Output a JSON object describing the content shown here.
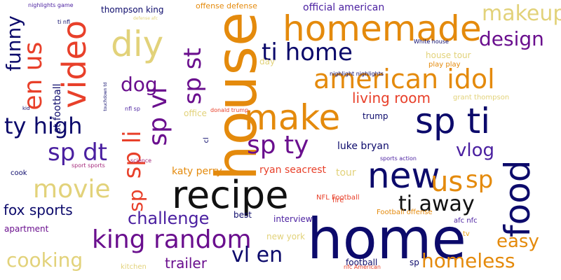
{
  "palette": {
    "navy": "#0c0a6b",
    "purple": "#6a0f8e",
    "violet": "#4a1fa0",
    "magenta": "#a4287a",
    "red": "#e8402a",
    "orange": "#e48a0c",
    "gold": "#e9a21a",
    "khaki": "#e2d27a",
    "black": "#111111"
  },
  "words": [
    {
      "text": "home",
      "color": "navy",
      "weight": 100
    },
    {
      "text": "house",
      "color": "orange",
      "weight": 96
    },
    {
      "text": "recipe",
      "color": "black",
      "weight": 88
    },
    {
      "text": "homemade",
      "color": "orange",
      "weight": 80
    },
    {
      "text": "new",
      "color": "navy",
      "weight": 74
    },
    {
      "text": "diy",
      "color": "khaki",
      "weight": 72
    },
    {
      "text": "sp ti",
      "color": "navy",
      "weight": 70
    },
    {
      "text": "make",
      "color": "orange",
      "weight": 68
    },
    {
      "text": "food",
      "color": "navy",
      "weight": 66
    },
    {
      "text": "video",
      "color": "red",
      "weight": 62
    },
    {
      "text": "american idol",
      "color": "orange",
      "weight": 58
    },
    {
      "text": "us",
      "color": "orange",
      "weight": 58
    },
    {
      "text": "king random",
      "color": "purple",
      "weight": 56
    },
    {
      "text": "en us",
      "color": "red",
      "weight": 54
    },
    {
      "text": "sp vl",
      "color": "purple",
      "weight": 54
    },
    {
      "text": "sp ty",
      "color": "purple",
      "weight": 52
    },
    {
      "text": "movie",
      "color": "khaki",
      "weight": 52
    },
    {
      "text": "sp st",
      "color": "purple",
      "weight": 50
    },
    {
      "text": "sp dt",
      "color": "violet",
      "weight": 50
    },
    {
      "text": "sp li",
      "color": "red",
      "weight": 48
    },
    {
      "text": "sp",
      "color": "orange",
      "weight": 48
    },
    {
      "text": "ti home",
      "color": "navy",
      "weight": 48
    },
    {
      "text": "ti away",
      "color": "black",
      "weight": 46
    },
    {
      "text": "vl en",
      "color": "navy",
      "weight": 46
    },
    {
      "text": "ty high",
      "color": "navy",
      "weight": 44
    },
    {
      "text": "makeup",
      "color": "khaki",
      "weight": 44
    },
    {
      "text": "homeless",
      "color": "orange",
      "weight": 42
    },
    {
      "text": "cooking",
      "color": "khaki",
      "weight": 42
    },
    {
      "text": "design",
      "color": "purple",
      "weight": 40
    },
    {
      "text": "sp",
      "color": "red",
      "weight": 40
    },
    {
      "text": "vlog",
      "color": "violet",
      "weight": 38
    },
    {
      "text": "easy",
      "color": "orange",
      "weight": 38
    },
    {
      "text": "funny",
      "color": "navy",
      "weight": 36
    },
    {
      "text": "dog",
      "color": "purple",
      "weight": 36
    },
    {
      "text": "challenge",
      "color": "violet",
      "weight": 34
    },
    {
      "text": "trailer",
      "color": "purple",
      "weight": 32
    },
    {
      "text": "fox sports",
      "color": "navy",
      "weight": 32
    },
    {
      "text": "living room",
      "color": "red",
      "weight": 30
    },
    {
      "text": "house tour",
      "color": "khaki",
      "weight": 22
    },
    {
      "text": "office",
      "color": "khaki",
      "weight": 20
    },
    {
      "text": "luke bryan",
      "color": "navy",
      "weight": 20
    },
    {
      "text": "ryan seacrest",
      "color": "red",
      "weight": 20
    },
    {
      "text": "katy perry",
      "color": "orange",
      "weight": 20
    },
    {
      "text": "official american",
      "color": "violet",
      "weight": 18
    },
    {
      "text": "thompson king",
      "color": "navy",
      "weight": 18
    },
    {
      "text": "offense defense",
      "color": "orange",
      "weight": 18
    },
    {
      "text": "interview",
      "color": "violet",
      "weight": 18
    },
    {
      "text": "new york",
      "color": "khaki",
      "weight": 18
    },
    {
      "text": "trump",
      "color": "navy",
      "weight": 18
    },
    {
      "text": "tour",
      "color": "khaki",
      "weight": 18
    },
    {
      "text": "best",
      "color": "navy",
      "weight": 18
    },
    {
      "text": "apartment",
      "color": "purple",
      "weight": 16
    },
    {
      "text": "kitchen",
      "color": "khaki",
      "weight": 14
    },
    {
      "text": "football",
      "color": "navy",
      "weight": 14
    },
    {
      "text": "st football",
      "color": "navy",
      "weight": 14
    },
    {
      "text": "grant thompson",
      "color": "khaki",
      "weight": 14
    },
    {
      "text": "afc nfc",
      "color": "violet",
      "weight": 14
    },
    {
      "text": "sp",
      "color": "navy",
      "weight": 14
    },
    {
      "text": "ti nfl",
      "color": "navy",
      "weight": 12
    },
    {
      "text": "play play",
      "color": "orange",
      "weight": 12
    },
    {
      "text": "NFL Football",
      "color": "red",
      "weight": 12
    },
    {
      "text": "Football offense",
      "color": "orange",
      "weight": 12
    },
    {
      "text": "fire",
      "color": "red",
      "weight": 12
    },
    {
      "text": "tv",
      "color": "gold",
      "weight": 12
    },
    {
      "text": "cook",
      "color": "navy",
      "weight": 12
    },
    {
      "text": "science",
      "color": "magenta",
      "weight": 11
    },
    {
      "text": "sport sports",
      "color": "magenta",
      "weight": 10
    },
    {
      "text": "sports action",
      "color": "violet",
      "weight": 10
    },
    {
      "text": "nfl sp",
      "color": "violet",
      "weight": 10
    },
    {
      "text": "cl",
      "color": "navy",
      "weight": 12
    },
    {
      "text": "day",
      "color": "khaki",
      "weight": 14
    },
    {
      "text": "donald trump",
      "color": "red",
      "weight": 10
    },
    {
      "text": "White house",
      "color": "navy",
      "weight": 10
    },
    {
      "text": "nighlight nighlights",
      "color": "navy",
      "weight": 10
    },
    {
      "text": "nighlights game",
      "color": "violet",
      "weight": 10
    },
    {
      "text": "defense afc",
      "color": "khaki",
      "weight": 9
    },
    {
      "text": "touchdown td",
      "color": "navy",
      "weight": 9
    },
    {
      "text": "kid",
      "color": "navy",
      "weight": 9
    },
    {
      "text": "nfc American",
      "color": "red",
      "weight": 9
    }
  ]
}
